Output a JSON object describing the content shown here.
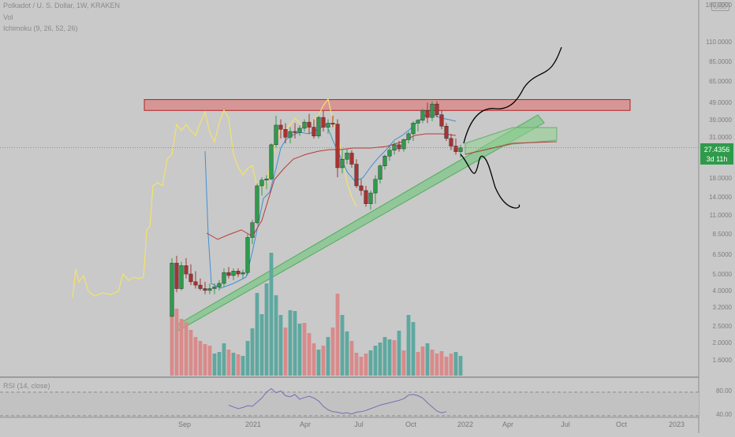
{
  "header": {
    "symbol_line": "Polkadot / U. S. Dollar, 1W, KRAKEN",
    "vol_label": "Vol",
    "ichimoku_label": "Ichimoku (9, 26, 52, 26)",
    "rsi_label": "RSI (14, close)"
  },
  "price_axis": {
    "currency_badge": "USD",
    "ticks": [
      "180.0000",
      "110.0000",
      "85.0000",
      "65.0000",
      "49.0000",
      "39.0000",
      "31.0000",
      "25.0000",
      "18.0000",
      "14.0000",
      "11.0000",
      "8.5000",
      "6.5000",
      "5.0000",
      "4.0000",
      "3.2000",
      "2.5000",
      "2.0000",
      "1.6000"
    ],
    "current_price": "27.4356",
    "countdown": "3d 11h"
  },
  "rsi_axis": {
    "ticks": [
      "80.00",
      "40.00"
    ]
  },
  "time_axis": {
    "ticks": [
      "Sep",
      "2021",
      "Apr",
      "Jul",
      "Oct",
      "2022",
      "Apr",
      "Jul",
      "Oct",
      "2023"
    ]
  },
  "colors": {
    "background": "#c9c9c9",
    "up": "#2e9b4b",
    "down": "#a83232",
    "resistance_zone": "#d98a8a",
    "support_channel": "#7fc58a",
    "lagging_span": "#f3e36a",
    "tenkan": "#3f8fd6",
    "kijun": "#b83a3a",
    "rsi_line": "#7b6cb5",
    "drawing": "#000000"
  },
  "chart_data": {
    "type": "candlestick",
    "title": "Polkadot / U. S. Dollar, 1W, KRAKEN",
    "scale": "log",
    "ylim": [
      1.45,
      180
    ],
    "xlabel": "",
    "ylabel": "",
    "grid": false,
    "first_week": "2020-08-17",
    "candles": [
      {
        "o": 2.9,
        "h": 6.3,
        "l": 2.9,
        "c": 5.9
      },
      {
        "o": 5.9,
        "h": 6.5,
        "l": 4.0,
        "c": 4.2
      },
      {
        "o": 4.2,
        "h": 6.0,
        "l": 4.1,
        "c": 5.7
      },
      {
        "o": 5.7,
        "h": 6.3,
        "l": 4.8,
        "c": 5.1
      },
      {
        "o": 5.1,
        "h": 5.8,
        "l": 4.4,
        "c": 4.6
      },
      {
        "o": 4.6,
        "h": 5.3,
        "l": 4.2,
        "c": 4.4
      },
      {
        "o": 4.4,
        "h": 4.8,
        "l": 4.1,
        "c": 4.2
      },
      {
        "o": 4.2,
        "h": 4.6,
        "l": 3.9,
        "c": 4.1
      },
      {
        "o": 4.1,
        "h": 4.5,
        "l": 3.9,
        "c": 4.2
      },
      {
        "o": 4.2,
        "h": 4.5,
        "l": 3.9,
        "c": 4.3
      },
      {
        "o": 4.3,
        "h": 4.7,
        "l": 4.1,
        "c": 4.5
      },
      {
        "o": 4.5,
        "h": 5.5,
        "l": 4.3,
        "c": 5.2
      },
      {
        "o": 5.2,
        "h": 5.6,
        "l": 4.8,
        "c": 5.0
      },
      {
        "o": 5.0,
        "h": 5.5,
        "l": 4.7,
        "c": 5.3
      },
      {
        "o": 5.3,
        "h": 5.5,
        "l": 4.9,
        "c": 5.1
      },
      {
        "o": 5.1,
        "h": 5.4,
        "l": 4.8,
        "c": 5.2
      },
      {
        "o": 5.2,
        "h": 8.7,
        "l": 5.0,
        "c": 8.3
      },
      {
        "o": 8.3,
        "h": 10.5,
        "l": 7.6,
        "c": 10.1
      },
      {
        "o": 10.1,
        "h": 17.0,
        "l": 9.9,
        "c": 16.5
      },
      {
        "o": 16.5,
        "h": 18.5,
        "l": 14.5,
        "c": 17.8
      },
      {
        "o": 17.8,
        "h": 19.0,
        "l": 15.8,
        "c": 18.1
      },
      {
        "o": 18.1,
        "h": 29.0,
        "l": 17.8,
        "c": 28.5
      },
      {
        "o": 28.5,
        "h": 42.0,
        "l": 27.5,
        "c": 37.0
      },
      {
        "o": 37.0,
        "h": 40.0,
        "l": 31.0,
        "c": 35.0
      },
      {
        "o": 35.0,
        "h": 38.0,
        "l": 29.0,
        "c": 31.5
      },
      {
        "o": 31.5,
        "h": 36.0,
        "l": 29.0,
        "c": 34.0
      },
      {
        "o": 34.0,
        "h": 38.0,
        "l": 31.0,
        "c": 33.5
      },
      {
        "o": 33.5,
        "h": 37.0,
        "l": 32.0,
        "c": 35.5
      },
      {
        "o": 35.5,
        "h": 40.0,
        "l": 34.0,
        "c": 38.5
      },
      {
        "o": 38.5,
        "h": 43.0,
        "l": 33.0,
        "c": 36.0
      },
      {
        "o": 36.0,
        "h": 40.0,
        "l": 31.0,
        "c": 32.0
      },
      {
        "o": 32.0,
        "h": 42.0,
        "l": 31.0,
        "c": 41.0
      },
      {
        "o": 41.0,
        "h": 45.0,
        "l": 34.0,
        "c": 36.0
      },
      {
        "o": 36.0,
        "h": 40.0,
        "l": 33.0,
        "c": 38.0
      },
      {
        "o": 38.0,
        "h": 42.0,
        "l": 36.0,
        "c": 37.5
      },
      {
        "o": 37.5,
        "h": 40.0,
        "l": 18.5,
        "c": 21.0
      },
      {
        "o": 21.0,
        "h": 27.0,
        "l": 19.5,
        "c": 23.5
      },
      {
        "o": 23.5,
        "h": 27.0,
        "l": 22.0,
        "c": 25.5
      },
      {
        "o": 25.5,
        "h": 26.5,
        "l": 21.0,
        "c": 22.0
      },
      {
        "o": 22.0,
        "h": 23.5,
        "l": 16.0,
        "c": 16.5
      },
      {
        "o": 16.5,
        "h": 18.0,
        "l": 14.5,
        "c": 15.5
      },
      {
        "o": 15.5,
        "h": 16.5,
        "l": 12.5,
        "c": 13.0
      },
      {
        "o": 13.0,
        "h": 15.5,
        "l": 12.0,
        "c": 15.0
      },
      {
        "o": 15.0,
        "h": 19.0,
        "l": 13.0,
        "c": 18.0
      },
      {
        "o": 18.0,
        "h": 22.0,
        "l": 17.0,
        "c": 21.5
      },
      {
        "o": 21.5,
        "h": 25.0,
        "l": 20.5,
        "c": 24.5
      },
      {
        "o": 24.5,
        "h": 28.0,
        "l": 23.0,
        "c": 26.5
      },
      {
        "o": 26.5,
        "h": 29.5,
        "l": 25.0,
        "c": 28.5
      },
      {
        "o": 28.5,
        "h": 30.0,
        "l": 26.0,
        "c": 27.0
      },
      {
        "o": 27.0,
        "h": 31.0,
        "l": 26.0,
        "c": 30.5
      },
      {
        "o": 30.5,
        "h": 34.0,
        "l": 29.0,
        "c": 33.0
      },
      {
        "o": 33.0,
        "h": 39.0,
        "l": 30.0,
        "c": 38.0
      },
      {
        "o": 38.0,
        "h": 40.0,
        "l": 34.0,
        "c": 39.5
      },
      {
        "o": 39.5,
        "h": 46.0,
        "l": 38.0,
        "c": 45.0
      },
      {
        "o": 45.0,
        "h": 50.0,
        "l": 38.0,
        "c": 41.0
      },
      {
        "o": 41.0,
        "h": 51.0,
        "l": 39.0,
        "c": 49.0
      },
      {
        "o": 49.0,
        "h": 51.0,
        "l": 41.0,
        "c": 42.5
      },
      {
        "o": 42.5,
        "h": 45.0,
        "l": 35.0,
        "c": 36.5
      },
      {
        "o": 36.5,
        "h": 38.0,
        "l": 30.0,
        "c": 31.0
      },
      {
        "o": 31.0,
        "h": 33.0,
        "l": 26.5,
        "c": 28.0
      },
      {
        "o": 28.0,
        "h": 31.0,
        "l": 25.0,
        "c": 26.0
      },
      {
        "o": 26.0,
        "h": 28.5,
        "l": 24.0,
        "c": 27.4
      }
    ],
    "volume": [
      {
        "v": 93,
        "up": false
      },
      {
        "v": 85,
        "up": false
      },
      {
        "v": 72,
        "up": false
      },
      {
        "v": 68,
        "up": false
      },
      {
        "v": 58,
        "up": false
      },
      {
        "v": 49,
        "up": false
      },
      {
        "v": 44,
        "up": false
      },
      {
        "v": 40,
        "up": false
      },
      {
        "v": 38,
        "up": false
      },
      {
        "v": 28,
        "up": true
      },
      {
        "v": 30,
        "up": true
      },
      {
        "v": 41,
        "up": true
      },
      {
        "v": 33,
        "up": false
      },
      {
        "v": 29,
        "up": true
      },
      {
        "v": 27,
        "up": false
      },
      {
        "v": 25,
        "up": true
      },
      {
        "v": 44,
        "up": true
      },
      {
        "v": 60,
        "up": true
      },
      {
        "v": 105,
        "up": true
      },
      {
        "v": 78,
        "up": true
      },
      {
        "v": 117,
        "up": true
      },
      {
        "v": 156,
        "up": true
      },
      {
        "v": 102,
        "up": true
      },
      {
        "v": 77,
        "up": true
      },
      {
        "v": 61,
        "up": false
      },
      {
        "v": 83,
        "up": true
      },
      {
        "v": 82,
        "up": true
      },
      {
        "v": 66,
        "up": true
      },
      {
        "v": 67,
        "up": false
      },
      {
        "v": 54,
        "up": false
      },
      {
        "v": 41,
        "up": false
      },
      {
        "v": 33,
        "up": true
      },
      {
        "v": 38,
        "up": false
      },
      {
        "v": 49,
        "up": true
      },
      {
        "v": 61,
        "up": false
      },
      {
        "v": 104,
        "up": false
      },
      {
        "v": 77,
        "up": true
      },
      {
        "v": 56,
        "up": true
      },
      {
        "v": 44,
        "up": false
      },
      {
        "v": 29,
        "up": false
      },
      {
        "v": 24,
        "up": false
      },
      {
        "v": 28,
        "up": false
      },
      {
        "v": 32,
        "up": true
      },
      {
        "v": 38,
        "up": true
      },
      {
        "v": 42,
        "up": true
      },
      {
        "v": 49,
        "up": true
      },
      {
        "v": 46,
        "up": true
      },
      {
        "v": 45,
        "up": false
      },
      {
        "v": 57,
        "up": true
      },
      {
        "v": 32,
        "up": false
      },
      {
        "v": 77,
        "up": true
      },
      {
        "v": 68,
        "up": true
      },
      {
        "v": 30,
        "up": false
      },
      {
        "v": 37,
        "up": false
      },
      {
        "v": 41,
        "up": true
      },
      {
        "v": 33,
        "up": false
      },
      {
        "v": 28,
        "up": false
      },
      {
        "v": 31,
        "up": false
      },
      {
        "v": 24,
        "up": false
      },
      {
        "v": 28,
        "up": false
      },
      {
        "v": 30,
        "up": true
      },
      {
        "v": 25,
        "up": true
      }
    ],
    "rsi": [
      58,
      55,
      52,
      54,
      57,
      56,
      63,
      70,
      80,
      86,
      79,
      82,
      74,
      72,
      76,
      68,
      71,
      73,
      70,
      65,
      56,
      50,
      47,
      46,
      44,
      45,
      43,
      46,
      47,
      49,
      52,
      55,
      58,
      60,
      62,
      64,
      66,
      69,
      75,
      76,
      74,
      70,
      62,
      55,
      48,
      45,
      47
    ],
    "resistance_zone": [
      45,
      52
    ],
    "current_price": 27.4356,
    "annotations": [
      "resistance zone",
      "rising support channel",
      "hand-drawn projection paths"
    ]
  }
}
